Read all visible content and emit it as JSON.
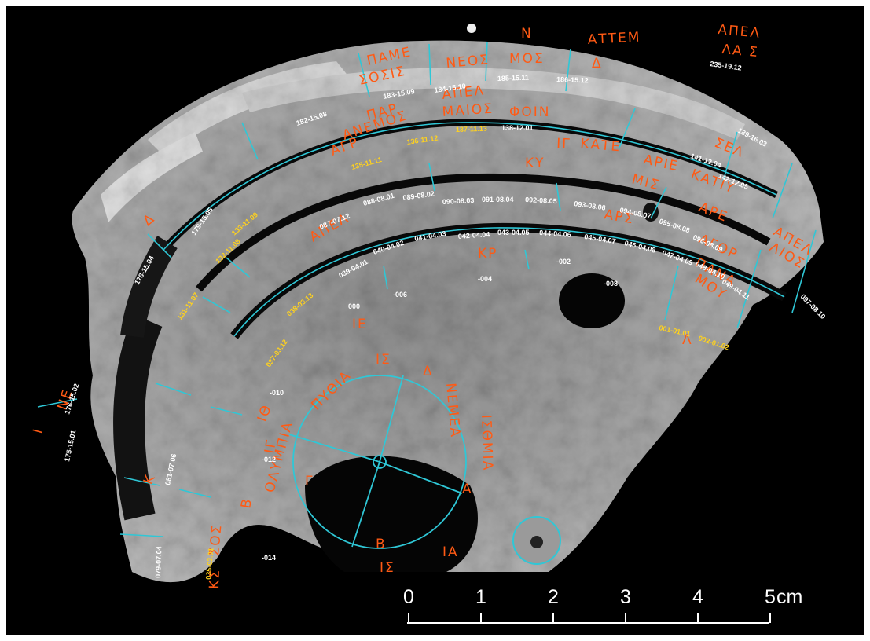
{
  "colors": {
    "background": "#000000",
    "frame": "#ffffff",
    "fragment": "#b9b9b9",
    "fragment_dark": "#6e6e6e",
    "annotation_lines": "#2fc7d6",
    "greek_letters": "#ff5a14",
    "labels_white": "#ffffff",
    "labels_yellow": "#ffd21e"
  },
  "scale_bar": {
    "ticks": [
      "0",
      "1",
      "2",
      "3",
      "4"
    ],
    "last_tick": "5",
    "unit": "cm"
  },
  "labels_white": [
    "184-15.10",
    "185-15.11",
    "186-15.12",
    "183-15.09",
    "182-15.08",
    "138-12.01",
    "189-16.03",
    "141-12.04",
    "142-12.05",
    "235-19.12",
    "090-08.03",
    "091-08.04",
    "092-08.05",
    "093-08.06",
    "094-08.07",
    "095-08.08",
    "096-08.09",
    "097-08.10",
    "089-08.02",
    "088-08.01",
    "087-07.12",
    "043-04.05",
    "044-04.06",
    "045-04.07",
    "046-04.08",
    "047-04.09",
    "048-04.10",
    "049-04.11",
    "042-04.04",
    "041-04.03",
    "040-04.02",
    "039-04.01",
    "179-15.05",
    "178-15.04",
    "176-15.02",
    "175-15.01",
    "081-07.06",
    "079-07.04",
    "-002",
    "-004",
    "-006",
    "-008",
    "000",
    "-010",
    "-012",
    "-014"
  ],
  "labels_yellow": [
    "137-11.13",
    "136-11.12",
    "135-11.11",
    "133-11.09",
    "132-11.08",
    "131-11.07",
    "038-03.13",
    "037-03.12",
    "001-01.01",
    "002-01.02",
    "035-03.01"
  ],
  "greek_inscriptions": [
    "ΑΠΕΛ",
    "ΛΑ Σ",
    "ΑΤΤΕΜ",
    "Δ",
    "Ν",
    "ΜΟΣ",
    "ΝΕΟΣ",
    "ΠΑΜΕ",
    "ΣΟΣΙΣ",
    "ΑΠΕΛ",
    "ΜΑΙΟΣ",
    "ΦΟΙΝ",
    "ΠΑΡ",
    "ΑΝΕΜΟΣ",
    "ΑΓΡ",
    "ΚΑΤΕ",
    "ΑΡΙΕ",
    "ΜΙΣ",
    "ΚΑΤΙΥ",
    "ΣΕΛ",
    "ΑΡΕ",
    "ΑΠΕΛ",
    "ΛΙΟΣ",
    "ΑΓΟΡ",
    "ΠΑΝΑ",
    "ΜΟΥ",
    "ΑΡΣ",
    "ΙΓ",
    "ΚΥ",
    "ΚΡ",
    "ΙΕ",
    "ΙΣ",
    "ΑΠΕΛ",
    "Δ",
    "ΝΕ",
    "Ι",
    "Κ",
    "ΙΓ",
    "ΚΣ",
    "ΙΘ",
    "Β",
    "ΝΕΜΕΑ",
    "ΙΣΘΜΙΑ",
    "ΠΥΘΙΑ",
    "ΟΛΥΜΠΙΑ",
    "Α",
    "Β",
    "Γ",
    "Δ",
    "Λ",
    "ΙΣ",
    "ΙΑ",
    "ΣΟΣ"
  ],
  "icons": [
    "center-dial-circle",
    "small-dial-circle"
  ]
}
